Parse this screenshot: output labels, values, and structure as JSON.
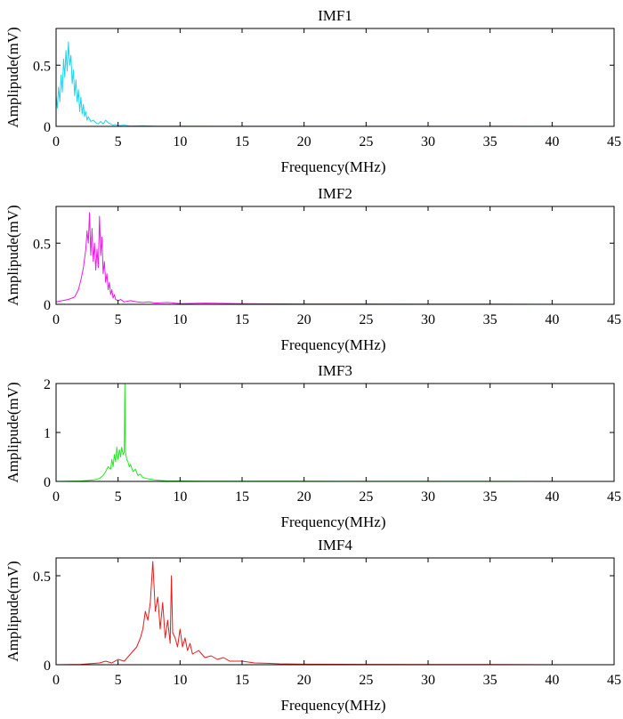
{
  "chart_data": [
    {
      "type": "line",
      "title": "IMF1",
      "xlabel": "Frequency(MHz)",
      "ylabel": "Amplipude(mV)",
      "xlim": [
        0,
        45
      ],
      "ylim": [
        0,
        0.8
      ],
      "xticks": [
        0,
        5,
        10,
        15,
        20,
        25,
        30,
        35,
        40,
        45
      ],
      "yticks": [
        0,
        0.5
      ],
      "ytick_labels": [
        "0",
        "0.5"
      ],
      "grid": false,
      "series": [
        {
          "color": "#22d3ee",
          "x": [
            0,
            0.1,
            0.2,
            0.3,
            0.4,
            0.5,
            0.6,
            0.7,
            0.8,
            0.9,
            1.0,
            1.1,
            1.2,
            1.3,
            1.4,
            1.5,
            1.6,
            1.7,
            1.8,
            1.9,
            2.0,
            2.1,
            2.2,
            2.3,
            2.4,
            2.5,
            2.6,
            2.8,
            3.0,
            3.2,
            3.4,
            3.6,
            3.8,
            4.0,
            4.2,
            4.4,
            4.6,
            4.8,
            5.0,
            5.5,
            6.0,
            7.0,
            8.0,
            10.0,
            15.0,
            20.0,
            25.0,
            30.0,
            35.0,
            41.0
          ],
          "y": [
            0.25,
            0.15,
            0.32,
            0.2,
            0.42,
            0.28,
            0.55,
            0.4,
            0.62,
            0.45,
            0.69,
            0.5,
            0.58,
            0.35,
            0.46,
            0.25,
            0.38,
            0.2,
            0.3,
            0.12,
            0.24,
            0.1,
            0.18,
            0.08,
            0.12,
            0.05,
            0.08,
            0.04,
            0.05,
            0.03,
            0.02,
            0.04,
            0.02,
            0.05,
            0.03,
            0.02,
            0.01,
            0.015,
            0.005,
            0.01,
            0.003,
            0.005,
            0.002,
            0.002,
            0.001,
            0.001,
            0.001,
            0.001,
            0.001,
            0.0
          ]
        }
      ]
    },
    {
      "type": "line",
      "title": "IMF2",
      "xlabel": "Frequency(MHz)",
      "ylabel": "Amplipude(mV)",
      "xlim": [
        0,
        45
      ],
      "ylim": [
        0,
        0.8
      ],
      "xticks": [
        0,
        5,
        10,
        15,
        20,
        25,
        30,
        35,
        40,
        45
      ],
      "yticks": [
        0,
        0.5
      ],
      "ytick_labels": [
        "0",
        "0.5"
      ],
      "grid": false,
      "series": [
        {
          "color": "#e81ce8",
          "x": [
            0,
            0.5,
            1.0,
            1.5,
            1.8,
            2.0,
            2.2,
            2.4,
            2.5,
            2.6,
            2.7,
            2.8,
            2.9,
            3.0,
            3.1,
            3.2,
            3.3,
            3.4,
            3.5,
            3.6,
            3.7,
            3.8,
            3.9,
            4.0,
            4.1,
            4.2,
            4.3,
            4.4,
            4.5,
            4.6,
            4.7,
            4.8,
            5.0,
            5.2,
            5.5,
            6.0,
            6.5,
            7.0,
            7.5,
            8.0,
            9.0,
            10.0,
            12.0,
            15.0,
            20.0,
            25.0,
            30.0,
            35.0,
            41.0
          ],
          "y": [
            0.02,
            0.03,
            0.04,
            0.06,
            0.12,
            0.2,
            0.3,
            0.45,
            0.6,
            0.5,
            0.75,
            0.4,
            0.62,
            0.35,
            0.5,
            0.28,
            0.45,
            0.3,
            0.72,
            0.4,
            0.55,
            0.25,
            0.35,
            0.18,
            0.25,
            0.12,
            0.18,
            0.08,
            0.12,
            0.05,
            0.08,
            0.04,
            0.03,
            0.04,
            0.02,
            0.03,
            0.02,
            0.015,
            0.02,
            0.01,
            0.015,
            0.005,
            0.01,
            0.005,
            0.003,
            0.003,
            0.002,
            0.002,
            0.0
          ]
        }
      ]
    },
    {
      "type": "line",
      "title": "IMF3",
      "xlabel": "Frequency(MHz)",
      "ylabel": "Amplipude(mV)",
      "xlim": [
        0,
        45
      ],
      "ylim": [
        0,
        2
      ],
      "xticks": [
        0,
        5,
        10,
        15,
        20,
        25,
        30,
        35,
        40,
        45
      ],
      "yticks": [
        0,
        1,
        2
      ],
      "ytick_labels": [
        "0",
        "1",
        "2"
      ],
      "grid": false,
      "series": [
        {
          "color": "#22e822",
          "x": [
            0,
            1.0,
            2.0,
            3.0,
            3.5,
            3.8,
            4.0,
            4.2,
            4.4,
            4.5,
            4.6,
            4.7,
            4.8,
            4.9,
            5.0,
            5.1,
            5.2,
            5.3,
            5.4,
            5.5,
            5.55,
            5.6,
            5.7,
            5.8,
            5.9,
            6.0,
            6.2,
            6.4,
            6.6,
            6.8,
            7.0,
            7.5,
            8.0,
            9.0,
            10.0,
            12.0,
            15.0,
            20.0,
            25.0,
            30.0,
            35.0,
            41.0
          ],
          "y": [
            0.0,
            0.005,
            0.01,
            0.03,
            0.06,
            0.12,
            0.2,
            0.3,
            0.25,
            0.45,
            0.3,
            0.55,
            0.4,
            0.7,
            0.45,
            0.65,
            0.5,
            0.7,
            0.55,
            0.6,
            2.0,
            0.6,
            0.45,
            0.4,
            0.3,
            0.35,
            0.2,
            0.25,
            0.12,
            0.15,
            0.08,
            0.05,
            0.03,
            0.01,
            0.01,
            0.005,
            0.004,
            0.003,
            0.002,
            0.002,
            0.002,
            0.0
          ]
        }
      ]
    },
    {
      "type": "line",
      "title": "IMF4",
      "xlabel": "Frequency(MHz)",
      "ylabel": "Amplipude(mV)",
      "xlim": [
        0,
        45
      ],
      "ylim": [
        0,
        0.6
      ],
      "xticks": [
        0,
        5,
        10,
        15,
        20,
        25,
        30,
        35,
        40,
        45
      ],
      "yticks": [
        0,
        0.5
      ],
      "ytick_labels": [
        "0",
        "0.5"
      ],
      "grid": false,
      "series": [
        {
          "color": "#e81c1c",
          "x": [
            0,
            2.0,
            3.5,
            4.0,
            4.5,
            5.0,
            5.5,
            6.0,
            6.5,
            6.8,
            7.0,
            7.2,
            7.4,
            7.6,
            7.8,
            8.0,
            8.2,
            8.4,
            8.6,
            8.8,
            9.0,
            9.2,
            9.3,
            9.4,
            9.6,
            9.8,
            10.0,
            10.2,
            10.4,
            10.6,
            10.8,
            11.0,
            11.5,
            12.0,
            12.5,
            13.0,
            13.5,
            14.0,
            15.0,
            16.0,
            17.0,
            18.0,
            20.0,
            25.0,
            30.0,
            35.0,
            41.0
          ],
          "y": [
            0.0,
            0.002,
            0.01,
            0.02,
            0.01,
            0.03,
            0.02,
            0.06,
            0.1,
            0.15,
            0.2,
            0.3,
            0.25,
            0.35,
            0.58,
            0.3,
            0.38,
            0.2,
            0.35,
            0.15,
            0.25,
            0.12,
            0.5,
            0.18,
            0.15,
            0.1,
            0.2,
            0.1,
            0.15,
            0.08,
            0.12,
            0.06,
            0.08,
            0.04,
            0.05,
            0.03,
            0.04,
            0.02,
            0.02,
            0.01,
            0.008,
            0.005,
            0.003,
            0.002,
            0.001,
            0.001,
            0.0
          ]
        }
      ]
    }
  ]
}
